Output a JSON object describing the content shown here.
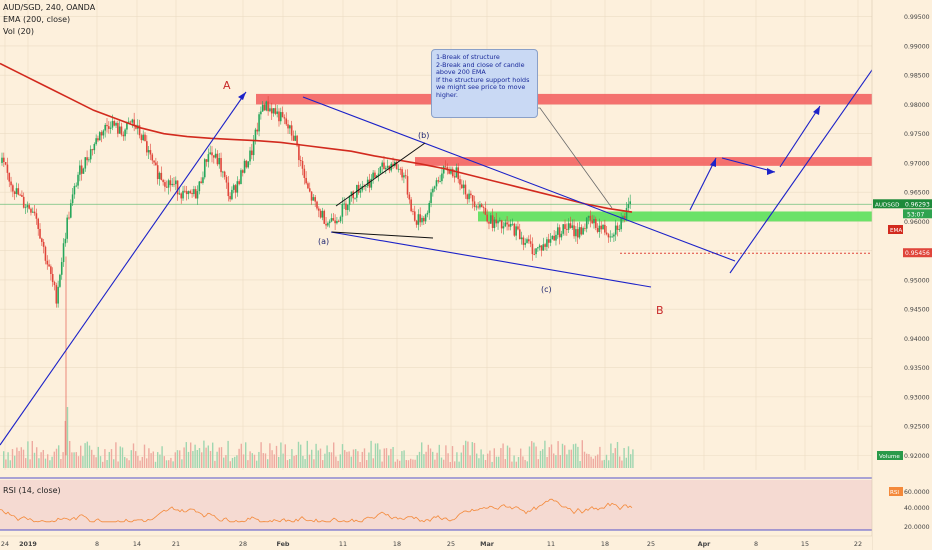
{
  "header": {
    "symbol_line": "AUD/SGD, 240, OANDA",
    "ema_line": "EMA (200, close)",
    "vol_line": "Vol (20)"
  },
  "callout": {
    "lines": [
      "1-Break of structure",
      "2-Break and close of candle above 200 EMA",
      "",
      "If the structure support holds we might see price to move higher."
    ]
  },
  "annotations": {
    "A": "A",
    "B": "B",
    "a": "(a)",
    "b": "(b)",
    "c": "(c)"
  },
  "price_labels": {
    "current_symbol": "AUDSGD",
    "current_price": "0.96293",
    "countdown": "53:07",
    "ema_tag": "EMA",
    "level": "0.95456"
  },
  "volume_tag": "Volume",
  "rsi": {
    "label": "RSI (14, close)",
    "tag": "RSI",
    "ticks": [
      "60.0000",
      "40.0000",
      "20.0000"
    ]
  },
  "colors": {
    "bg": "#fdf0dc",
    "up": "#26a65b",
    "down": "#e0453a",
    "ema": "#d22a1e",
    "trend": "#1c22c8",
    "resistance": "#f25a5a",
    "support": "#5be05b",
    "rsi_line": "#f4893a",
    "rsi_band": "#f2d4d0"
  },
  "chart_data": {
    "type": "candlestick",
    "ylim": [
      0.9175,
      0.997
    ],
    "yticks": [
      "0.99500",
      "0.99000",
      "0.98500",
      "0.98000",
      "0.97500",
      "0.97000",
      "0.96500",
      "0.96000",
      "0.95500",
      "0.95000",
      "0.94500",
      "0.94000",
      "0.93500",
      "0.93000",
      "0.92500",
      "0.92000"
    ],
    "xticks": [
      "24",
      "2019",
      "8",
      "14",
      "21",
      "28",
      "Feb",
      "11",
      "18",
      "25",
      "Mar",
      "11",
      "18",
      "25",
      "Apr",
      "8",
      "15",
      "22"
    ],
    "current_price": 0.96293,
    "level": 0.95456,
    "resistance_zones": [
      [
        0.98,
        0.9818
      ],
      [
        0.9695,
        0.971
      ]
    ],
    "support_zone": [
      0.96,
      0.9617
    ],
    "price_path": [
      0.97,
      0.966,
      0.963,
      0.962,
      0.954,
      0.947,
      0.96,
      0.968,
      0.9715,
      0.975,
      0.977,
      0.975,
      0.977,
      0.974,
      0.969,
      0.967,
      0.966,
      0.964,
      0.965,
      0.972,
      0.97,
      0.964,
      0.968,
      0.972,
      0.98,
      0.979,
      0.977,
      0.974,
      0.966,
      0.962,
      0.96,
      0.961,
      0.964,
      0.966,
      0.967,
      0.969,
      0.97,
      0.968,
      0.96,
      0.961,
      0.967,
      0.969,
      0.968,
      0.964,
      0.963,
      0.96,
      0.959,
      0.959,
      0.957,
      0.955,
      0.956,
      0.958,
      0.959,
      0.958,
      0.96,
      0.959,
      0.958,
      0.96,
      0.963
    ],
    "ema_path": [
      0.987,
      0.985,
      0.983,
      0.981,
      0.979,
      0.9775,
      0.976,
      0.975,
      0.9745,
      0.9742,
      0.974,
      0.9738,
      0.9735,
      0.973,
      0.9725,
      0.972,
      0.9712,
      0.9705,
      0.9698,
      0.969,
      0.968,
      0.967,
      0.966,
      0.965,
      0.964,
      0.963,
      0.9622,
      0.9616
    ],
    "projection": [
      [
        0.963,
        0.97
      ],
      [
        0.97,
        0.969
      ],
      [
        0.969,
        0.98
      ]
    ]
  }
}
